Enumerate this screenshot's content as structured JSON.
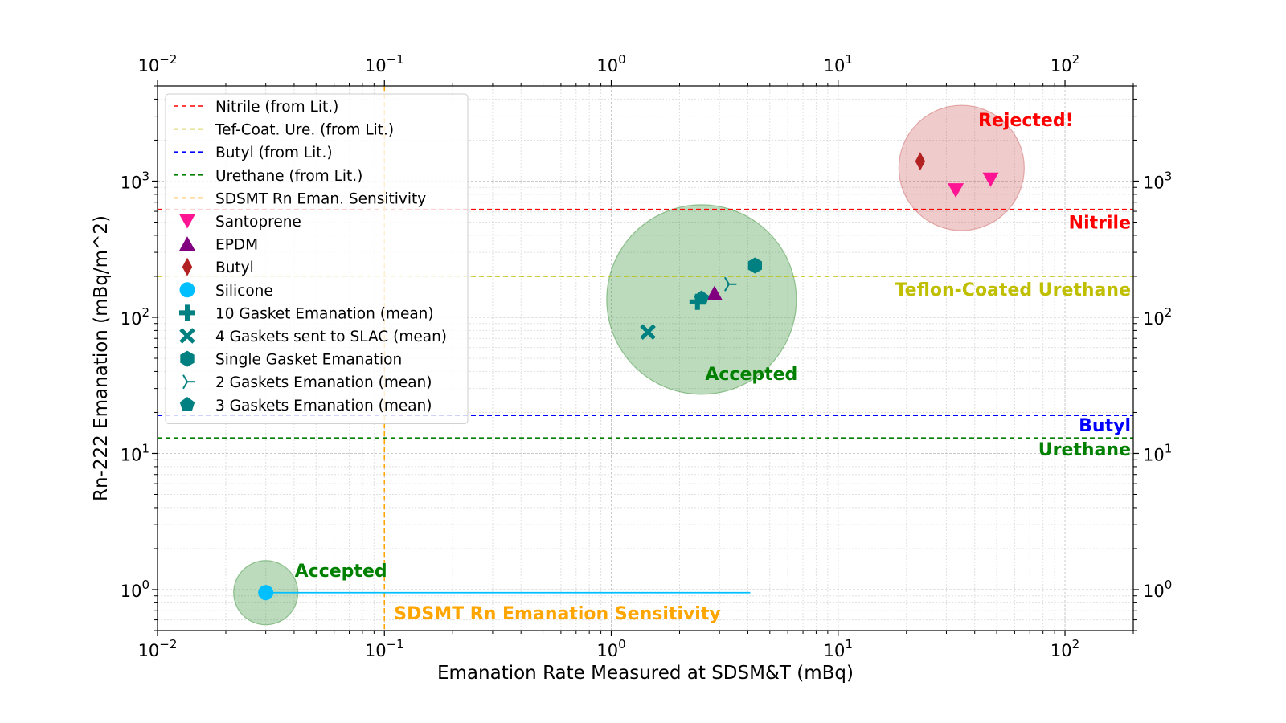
{
  "chart_data": {
    "type": "scatter",
    "xscale": "log",
    "yscale": "log",
    "xlim": [
      0.01,
      200
    ],
    "ylim": [
      0.5,
      5000
    ],
    "grid": true,
    "xlabel": "Emanation Rate Measured at SDSM&T (mBq)",
    "ylabel": "Rn-222 Emanation (mBq/m^2)",
    "xticks": [
      {
        "value": 0.01,
        "base": "10",
        "exp": "−2"
      },
      {
        "value": 0.1,
        "base": "10",
        "exp": "−1"
      },
      {
        "value": 1,
        "base": "10",
        "exp": "0"
      },
      {
        "value": 10,
        "base": "10",
        "exp": "1"
      },
      {
        "value": 100,
        "base": "10",
        "exp": "2"
      }
    ],
    "yticks": [
      {
        "value": 1,
        "base": "10",
        "exp": "0"
      },
      {
        "value": 10,
        "base": "10",
        "exp": "1"
      },
      {
        "value": 100,
        "base": "10",
        "exp": "2"
      },
      {
        "value": 1000,
        "base": "10",
        "exp": "3"
      }
    ],
    "reference_lines": [
      {
        "name": "Nitrile (from Lit.)",
        "orientation": "horizontal",
        "value": 620,
        "color": "#ff0000",
        "style": "dashed"
      },
      {
        "name": "Tef-Coat. Ure. (from Lit.)",
        "orientation": "horizontal",
        "value": 200,
        "color": "#bfbf00",
        "style": "dashed"
      },
      {
        "name": "Butyl (from Lit.)",
        "orientation": "horizontal",
        "value": 19,
        "color": "#0000ff",
        "style": "dashed"
      },
      {
        "name": "Urethane (from Lit.)",
        "orientation": "horizontal",
        "value": 13,
        "color": "#008000",
        "style": "dashed"
      },
      {
        "name": "SDSMT Rn Eman. Sensitivity",
        "orientation": "vertical",
        "value": 0.1,
        "color": "#ffa500",
        "style": "dashed"
      }
    ],
    "series": [
      {
        "name": "Santoprene",
        "marker": "triangle-down",
        "color": "#ff1493",
        "points": [
          {
            "x": 33,
            "y": 860
          },
          {
            "x": 47,
            "y": 1030
          }
        ]
      },
      {
        "name": "EPDM",
        "marker": "triangle-up",
        "color": "#800080",
        "points": [
          {
            "x": 2.85,
            "y": 150
          }
        ]
      },
      {
        "name": "Butyl",
        "marker": "diamond",
        "color": "#b22222",
        "points": [
          {
            "x": 23,
            "y": 1400
          }
        ]
      },
      {
        "name": "Silicone",
        "marker": "circle",
        "color": "#00bfff",
        "points": [
          {
            "x": 0.03,
            "y": 0.95
          }
        ]
      },
      {
        "name": "10 Gasket Emanation (mean)",
        "marker": "plus",
        "color": "#008080",
        "points": [
          {
            "x": 2.4,
            "y": 130
          }
        ]
      },
      {
        "name": "4 Gaskets sent to SLAC (mean)",
        "marker": "x",
        "color": "#008080",
        "points": [
          {
            "x": 1.45,
            "y": 78
          }
        ]
      },
      {
        "name": "Single Gasket Emanation",
        "marker": "hexagon",
        "color": "#008080",
        "points": [
          {
            "x": 4.3,
            "y": 240
          }
        ]
      },
      {
        "name": "2 Gaskets Emanation (mean)",
        "marker": "tri-right",
        "color": "#008080",
        "points": [
          {
            "x": 3.3,
            "y": 175
          }
        ]
      },
      {
        "name": "3 Gaskets Emanation (mean)",
        "marker": "pentagon",
        "color": "#008080",
        "points": [
          {
            "x": 2.5,
            "y": 138
          }
        ]
      }
    ],
    "silicone_range": {
      "x1": 0.03,
      "x2": 4.1,
      "y": 0.95,
      "color": "#00bfff"
    },
    "regions": [
      {
        "label": "Rejected!",
        "cx": 35,
        "cy": 1250,
        "color": "#cd5c5c",
        "text_color": "#ff0000"
      },
      {
        "label": "Accepted",
        "cx": 2.5,
        "cy": 135,
        "color": "#2e8b2e",
        "text_color": "#008000"
      },
      {
        "label": "Accepted",
        "cx": 0.03,
        "cy": 0.95,
        "color": "#2e8b2e",
        "text_color": "#008000"
      }
    ],
    "annotations": [
      {
        "text": "Nitrile",
        "color": "#ff0000"
      },
      {
        "text": "Teflon-Coated Urethane",
        "color": "#bfbf00"
      },
      {
        "text": "Butyl",
        "color": "#0000ff"
      },
      {
        "text": "Urethane",
        "color": "#008000"
      },
      {
        "text": "SDSMT Rn Emanation Sensitivity",
        "color": "#ffa500"
      }
    ],
    "legend": {
      "placement": "upper-left",
      "entries": [
        "Nitrile (from Lit.)",
        "Tef-Coat. Ure. (from Lit.)",
        "Butyl (from Lit.)",
        "Urethane (from Lit.)",
        "SDSMT Rn Eman. Sensitivity",
        "Santoprene",
        "EPDM",
        "Butyl",
        "Silicone",
        "10 Gasket Emanation (mean)",
        "4 Gaskets sent to SLAC (mean)",
        "Single Gasket Emanation",
        "2 Gaskets Emanation (mean)",
        "3 Gaskets Emanation (mean)"
      ]
    }
  }
}
